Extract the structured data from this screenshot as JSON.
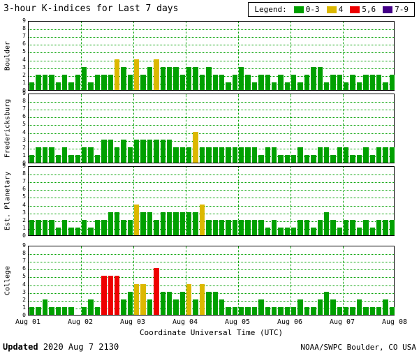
{
  "header": {
    "title": "3-hour K-indices for Last 7 days",
    "legend_label": "Legend:",
    "legend_items": [
      {
        "label": "0-3",
        "color": "#00a000"
      },
      {
        "label": "4",
        "color": "#dcb800"
      },
      {
        "label": "5,6",
        "color": "#ee0000"
      },
      {
        "label": "7-9",
        "color": "#440088"
      }
    ]
  },
  "footer": {
    "updated_label": "Updated",
    "updated_value": "2020 Aug 7 2130",
    "credit": "NOAA/SWPC Boulder, CO USA"
  },
  "chart_data": {
    "type": "bar",
    "title": "3-hour K-indices for Last 7 days",
    "xlabel": "Coordinate Universal Time (UTC)",
    "x_tick_labels": [
      "Aug 01",
      "Aug 02",
      "Aug 03",
      "Aug 04",
      "Aug 05",
      "Aug 06",
      "Aug 07",
      "Aug 08"
    ],
    "ylim": [
      0,
      9
    ],
    "y_ticks": [
      0,
      1,
      2,
      3,
      4,
      5,
      6,
      7,
      8,
      9
    ],
    "bars_per_day": 8,
    "grid": true,
    "colors": {
      "k0_3": "#00a000",
      "k4": "#dcb800",
      "k5_6": "#ee0000",
      "k7_9": "#440088"
    },
    "series": [
      {
        "name": "Boulder",
        "values": [
          1,
          2,
          2,
          2,
          1,
          2,
          1,
          2,
          3,
          1,
          2,
          2,
          2,
          4,
          3,
          2,
          4,
          2,
          3,
          4,
          3,
          3,
          3,
          2,
          3,
          3,
          2,
          3,
          2,
          2,
          1,
          2,
          3,
          2,
          1,
          2,
          2,
          1,
          2,
          1,
          2,
          1,
          2,
          3,
          3,
          1,
          2,
          2,
          1,
          2,
          1,
          2,
          2,
          2,
          1,
          2
        ]
      },
      {
        "name": "Fredericksburg",
        "values": [
          1,
          2,
          2,
          2,
          1,
          2,
          1,
          1,
          2,
          2,
          1,
          3,
          3,
          2,
          3,
          2,
          3,
          3,
          3,
          3,
          3,
          3,
          2,
          2,
          2,
          4,
          2,
          2,
          2,
          2,
          2,
          2,
          2,
          2,
          2,
          1,
          2,
          2,
          1,
          1,
          1,
          2,
          1,
          1,
          2,
          2,
          1,
          2,
          2,
          1,
          1,
          2,
          1,
          2,
          2,
          2
        ]
      },
      {
        "name": "Est. Planetary",
        "values": [
          2,
          2,
          2,
          2,
          1,
          2,
          1,
          1,
          2,
          1,
          2,
          2,
          3,
          3,
          2,
          2,
          4,
          3,
          3,
          2,
          3,
          3,
          3,
          3,
          3,
          3,
          4,
          2,
          2,
          2,
          2,
          2,
          2,
          2,
          2,
          2,
          1,
          2,
          1,
          1,
          1,
          2,
          2,
          1,
          2,
          3,
          2,
          1,
          2,
          2,
          1,
          2,
          1,
          2,
          2,
          2
        ]
      },
      {
        "name": "College",
        "values": [
          1,
          1,
          2,
          1,
          1,
          1,
          1,
          0,
          1,
          2,
          1,
          5,
          5,
          5,
          2,
          3,
          4,
          4,
          2,
          6,
          3,
          3,
          2,
          3,
          4,
          2,
          4,
          3,
          3,
          2,
          1,
          1,
          1,
          1,
          1,
          2,
          1,
          1,
          1,
          1,
          1,
          2,
          1,
          1,
          2,
          3,
          2,
          1,
          1,
          1,
          2,
          1,
          1,
          1,
          2,
          1
        ]
      }
    ]
  }
}
